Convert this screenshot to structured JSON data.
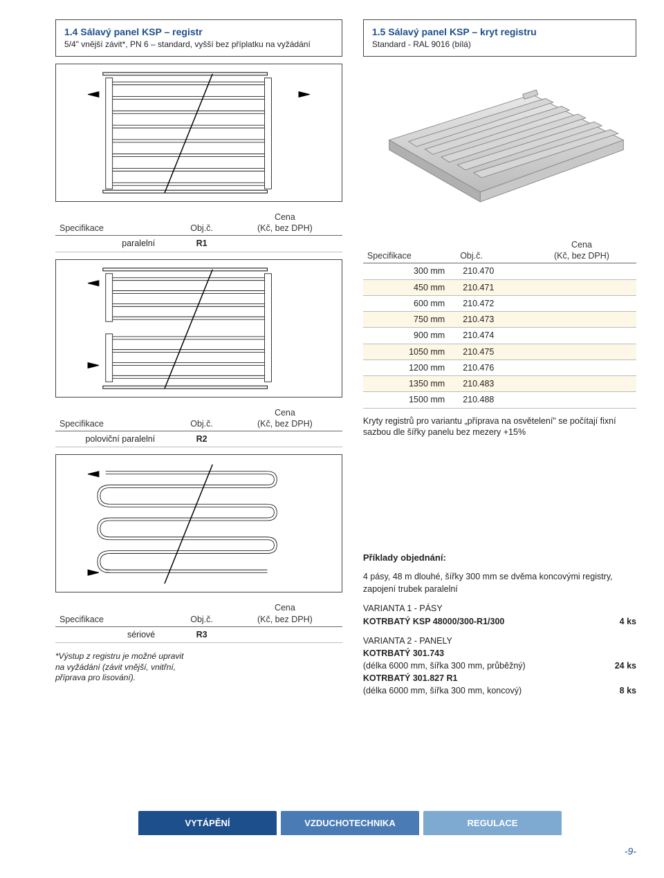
{
  "colors": {
    "accent": "#1d4f8c",
    "altRow": "#fdf7e6",
    "border": "#444444",
    "lightBorder": "#bbbbbb",
    "ink": "#222222",
    "tab2": "#4a7bb5",
    "tab3": "#7ea9d1",
    "panelFill": "#d9d9d9",
    "panelEdge": "#9a9a9a"
  },
  "left": {
    "title1": "1.4 Sálavý panel KSP – registr",
    "title2": "5/4\" vnější závit*, PN 6 – standard, vyšší bez příplatku na vyžádání",
    "tables": [
      {
        "header": {
          "spec": "Specifikace",
          "obj": "Obj.č.",
          "cena1": "Cena",
          "cena2": "(Kč, bez DPH)"
        },
        "rows": [
          {
            "spec": "paralelní",
            "obj": "R1",
            "cena": ""
          }
        ]
      },
      {
        "header": {
          "spec": "Specifikace",
          "obj": "Obj.č.",
          "cena1": "Cena",
          "cena2": "(Kč, bez DPH)"
        },
        "rows": [
          {
            "spec": "poloviční paralelní",
            "obj": "R2",
            "cena": ""
          }
        ]
      },
      {
        "header": {
          "spec": "Specifikace",
          "obj": "Obj.č.",
          "cena1": "Cena",
          "cena2": "(Kč, bez DPH)"
        },
        "rows": [
          {
            "spec": "sériové",
            "obj": "R3",
            "cena": ""
          }
        ]
      }
    ],
    "footnote": "*Výstup z registru je možné upravit na vyžádání (závit vnější, vnitřní, příprava pro lisování)."
  },
  "right": {
    "title1": "1.5 Sálavý panel KSP – kryt registru",
    "title2": "Standard - RAL 9016 (bílá)",
    "table": {
      "header": {
        "spec": "Specifikace",
        "obj": "Obj.č.",
        "cena1": "Cena",
        "cena2": "(Kč, bez DPH)"
      },
      "rows": [
        {
          "spec": "300 mm",
          "obj": "210.470",
          "cena": "",
          "alt": false
        },
        {
          "spec": "450 mm",
          "obj": "210.471",
          "cena": "",
          "alt": true
        },
        {
          "spec": "600 mm",
          "obj": "210.472",
          "cena": "",
          "alt": false
        },
        {
          "spec": "750 mm",
          "obj": "210.473",
          "cena": "",
          "alt": true
        },
        {
          "spec": "900 mm",
          "obj": "210.474",
          "cena": "",
          "alt": false
        },
        {
          "spec": "1050 mm",
          "obj": "210.475",
          "cena": "",
          "alt": true
        },
        {
          "spec": "1200 mm",
          "obj": "210.476",
          "cena": "",
          "alt": false
        },
        {
          "spec": "1350 mm",
          "obj": "210.483",
          "cena": "",
          "alt": true
        },
        {
          "spec": "1500 mm",
          "obj": "210.488",
          "cena": "",
          "alt": false
        }
      ]
    },
    "note": "Kryty registrů pro variantu „příprava na osvětelení\" se počítají fixní sazbou dle šířky panelu bez mezery +15%",
    "example": {
      "heading": "Příklady objednání:",
      "intro": "4 pásy, 48 m dlouhé, šířky 300 mm se dvěma koncovými registry, zapojení trubek paralelní",
      "v1label": "VARIANTA 1 - PÁSY",
      "v1line": "KOTRBATÝ KSP 48000/300-R1/300",
      "v1qty": "4 ks",
      "v2label": "VARIANTA 2 - PANELY",
      "v2line1a": "KOTRBATÝ 301.743",
      "v2line1b": "(délka 6000 mm, šířka 300 mm, průběžný)",
      "v2qty1": "24 ks",
      "v2line2a": "KOTRBATÝ 301.827 R1",
      "v2line2b": "(délka 6000 mm, šířka 300 mm, koncový)",
      "v2qty2": "8 ks"
    }
  },
  "tabs": [
    "VYTÁPĚNÍ",
    "VZDUCHOTECHNIKA",
    "REGULACE"
  ],
  "pagenum": "-9-"
}
